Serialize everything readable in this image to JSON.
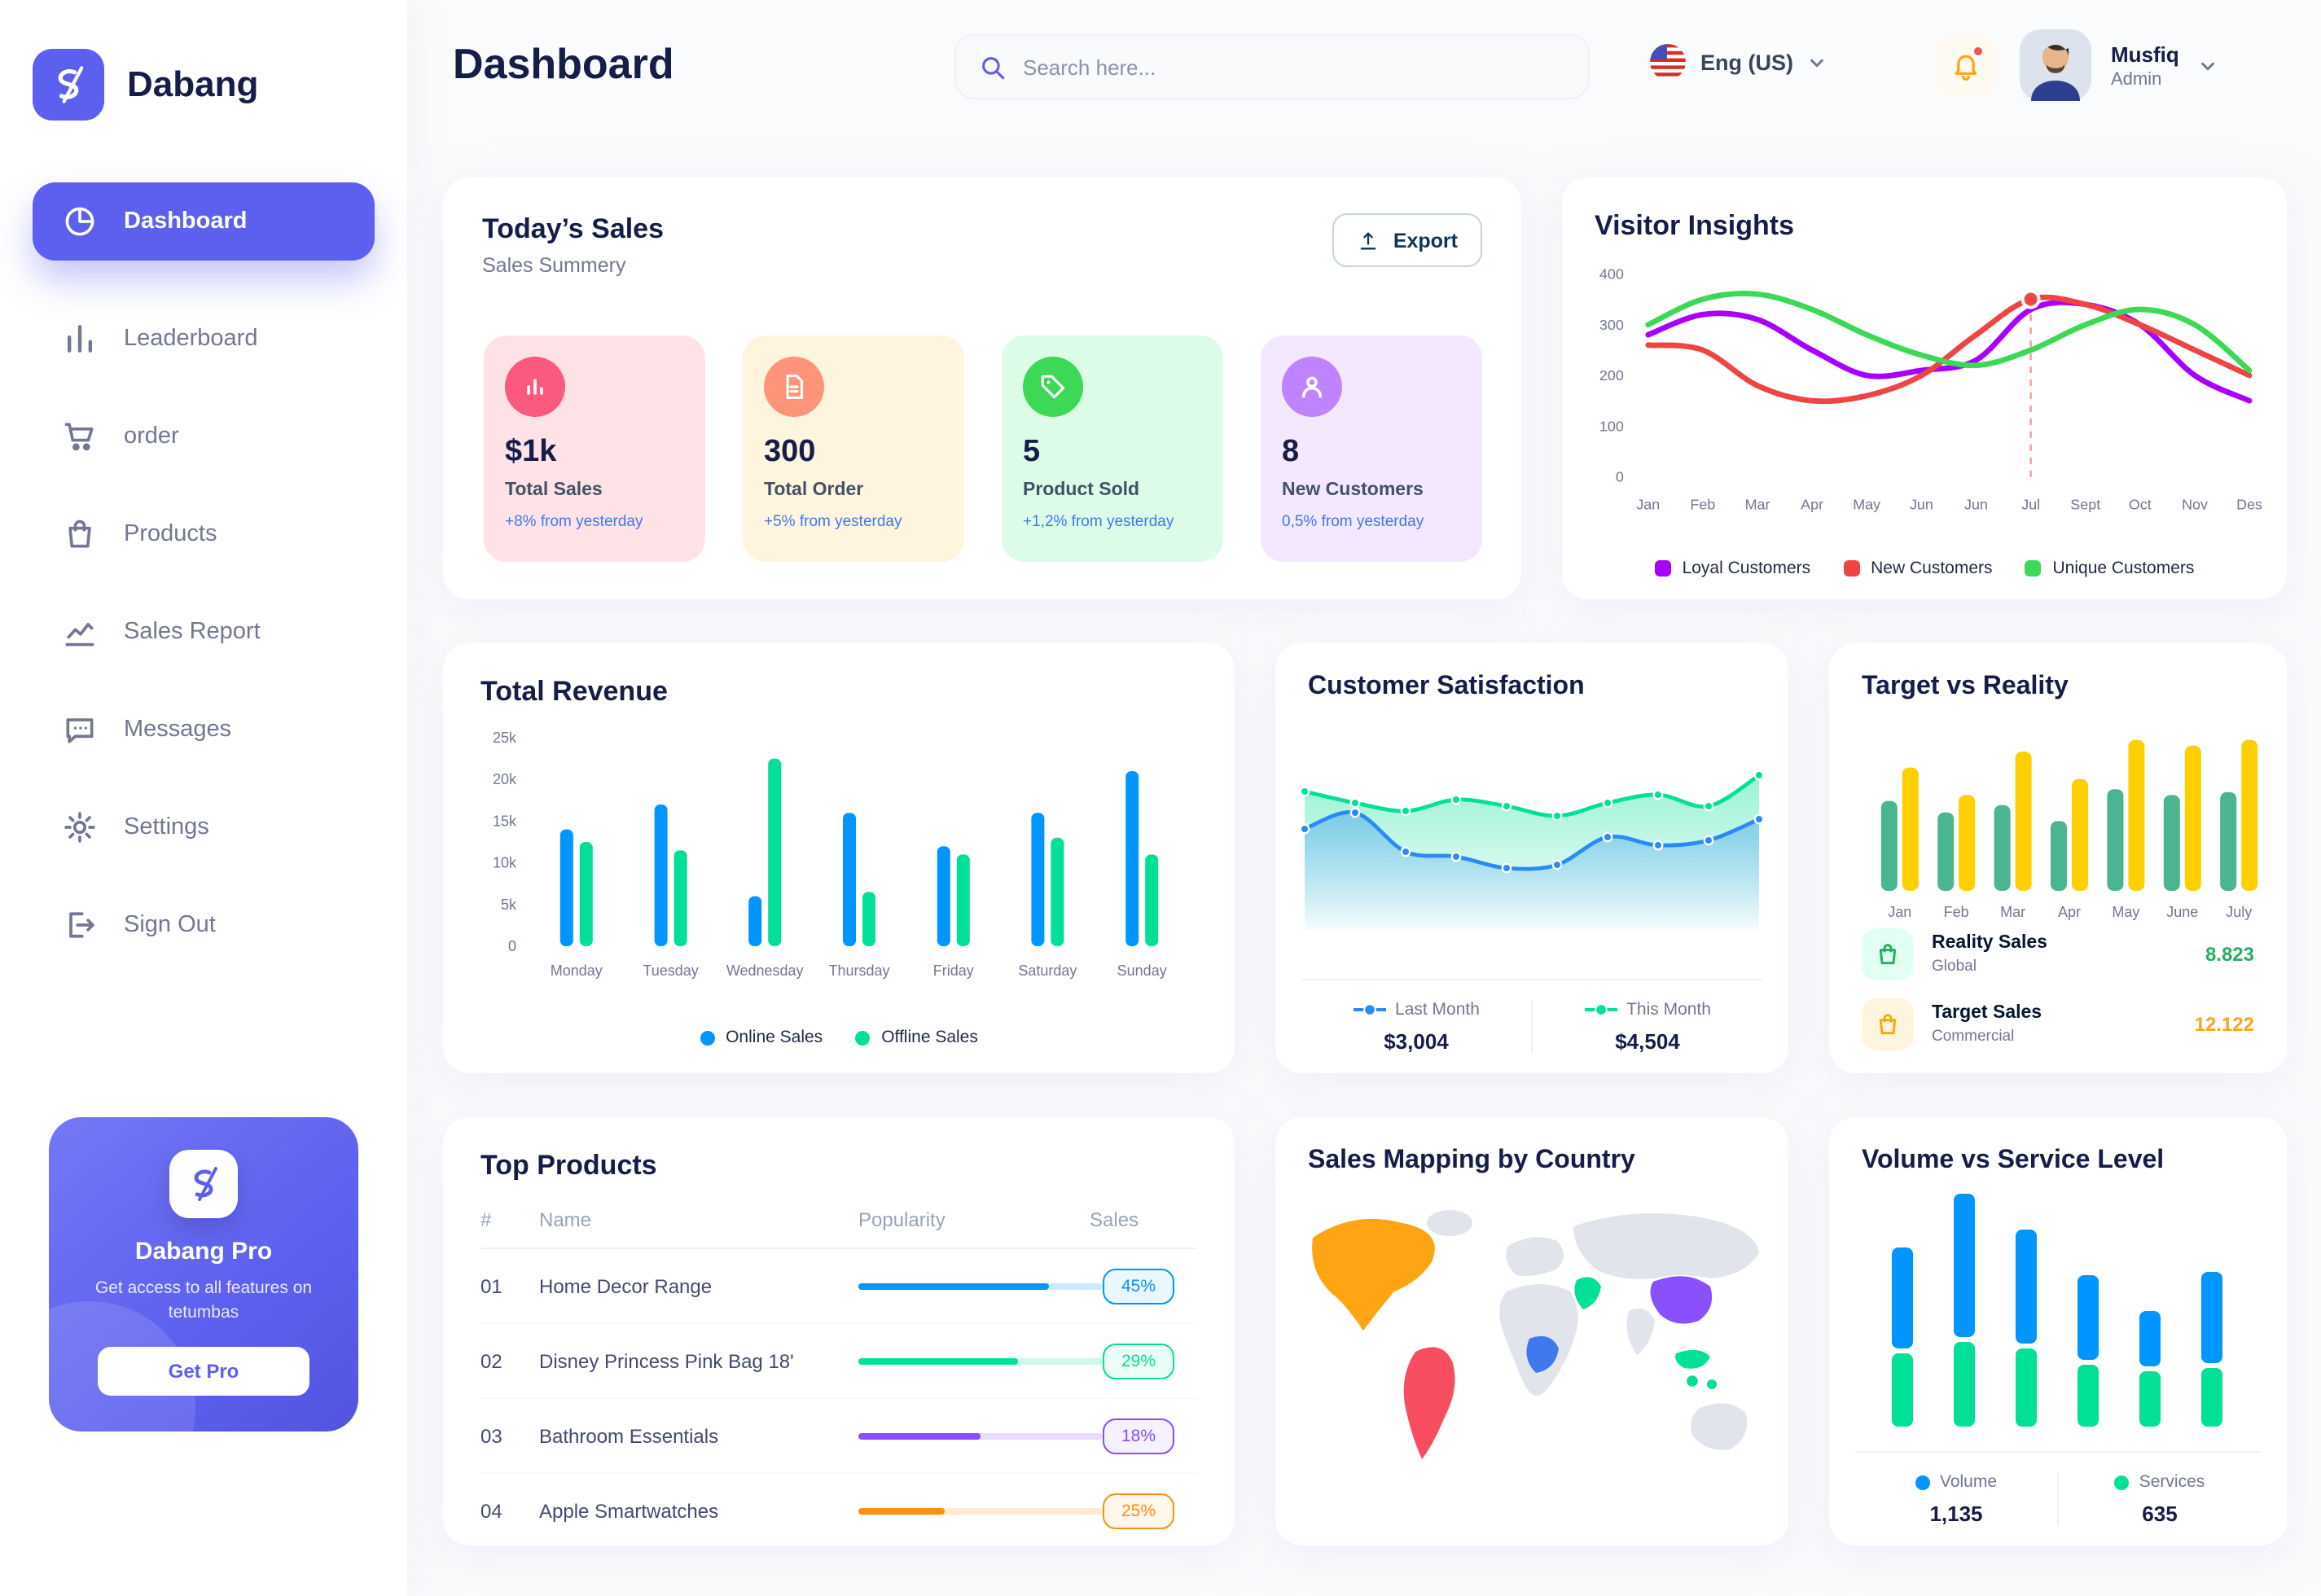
{
  "colors": {
    "primary": "#5D5FEF",
    "navy": "#151D48",
    "gray": "#737791",
    "blue": "#0095FF",
    "green": "#00E096",
    "violet": "#A700FF",
    "red": "#EF4444",
    "lime": "#3CD856",
    "yellow": "#FFCF00",
    "orange": "#FFA412"
  },
  "map_colors": {
    "land": "#E2E4EC",
    "north_america": "#FFA412",
    "south_america": "#F64E60",
    "africa_highlight": "#4079ED",
    "middle_east": "#00E096",
    "china": "#8950FC",
    "indonesia": "#00E096"
  },
  "app": {
    "name": "Dabang"
  },
  "sidebar": {
    "items": [
      {
        "label": "Dashboard",
        "icon": "dashboard",
        "active": true
      },
      {
        "label": "Leaderboard",
        "icon": "leaderboard",
        "active": false
      },
      {
        "label": "order",
        "icon": "cart",
        "active": false
      },
      {
        "label": "Products",
        "icon": "bag",
        "active": false
      },
      {
        "label": "Sales Report",
        "icon": "chart",
        "active": false
      },
      {
        "label": "Messages",
        "icon": "message",
        "active": false
      },
      {
        "label": "Settings",
        "icon": "gear",
        "active": false
      },
      {
        "label": "Sign Out",
        "icon": "signout",
        "active": false
      }
    ],
    "promo": {
      "title": "Dabang Pro",
      "text": "Get access to all features on tetumbas",
      "button": "Get Pro"
    }
  },
  "header": {
    "title": "Dashboard",
    "search_placeholder": "Search here...",
    "language": "Eng (US)",
    "user": {
      "name": "Musfiq",
      "role": "Admin"
    }
  },
  "todays_sales": {
    "title": "Today’s Sales",
    "subtitle": "Sales Summery",
    "export_label": "Export",
    "stats": [
      {
        "value": "$1k",
        "label": "Total Sales",
        "note": "+8% from yesterday",
        "bg": "#FFE2E5",
        "icon_bg": "#FA5A7D",
        "icon": "stat-chart"
      },
      {
        "value": "300",
        "label": "Total Order",
        "note": "+5% from yesterday",
        "bg": "#FFF4DE",
        "icon_bg": "#FF947A",
        "icon": "stat-file"
      },
      {
        "value": "5",
        "label": "Product Sold",
        "note": "+1,2% from yesterday",
        "bg": "#DCFCE7",
        "icon_bg": "#3CD856",
        "icon": "stat-tag"
      },
      {
        "value": "8",
        "label": "New Customers",
        "note": "0,5% from yesterday",
        "bg": "#F3E8FF",
        "icon_bg": "#BF83FF",
        "icon": "stat-user"
      }
    ]
  },
  "chart_data": [
    {
      "id": "visitor_insights",
      "type": "line",
      "title": "Visitor Insights",
      "x": [
        "Jan",
        "Feb",
        "Mar",
        "Apr",
        "May",
        "Jun",
        "Jun",
        "Jul",
        "Sept",
        "Oct",
        "Nov",
        "Des"
      ],
      "ylim": [
        0,
        400
      ],
      "yticks": [
        0,
        100,
        200,
        300,
        400
      ],
      "legend_position": "bottom",
      "series": [
        {
          "name": "Loyal Customers",
          "color": "#A700FF",
          "values": [
            280,
            320,
            310,
            250,
            200,
            210,
            230,
            330,
            340,
            300,
            200,
            150
          ]
        },
        {
          "name": "New Customers",
          "color": "#EF4444",
          "values": [
            260,
            250,
            180,
            150,
            160,
            200,
            280,
            350,
            340,
            300,
            250,
            200
          ]
        },
        {
          "name": "Unique Customers",
          "color": "#3CD856",
          "values": [
            300,
            350,
            360,
            330,
            280,
            240,
            220,
            250,
            300,
            330,
            300,
            210
          ]
        }
      ],
      "marker": {
        "series": "New Customers",
        "x_index": 7
      }
    },
    {
      "id": "total_revenue",
      "type": "bar",
      "title": "Total Revenue",
      "categories": [
        "Monday",
        "Tuesday",
        "Wednesday",
        "Thursday",
        "Friday",
        "Saturday",
        "Sunday"
      ],
      "ylim": [
        0,
        25000
      ],
      "yticks": [
        "0",
        "5k",
        "10k",
        "15k",
        "20k",
        "25k"
      ],
      "legend_position": "bottom",
      "series": [
        {
          "name": "Online Sales",
          "color": "#0095FF",
          "values": [
            14000,
            17000,
            6000,
            16000,
            12000,
            16000,
            21000
          ]
        },
        {
          "name": "Offline Sales",
          "color": "#00E096",
          "values": [
            12500,
            11500,
            22500,
            6500,
            11000,
            13000,
            11000
          ]
        }
      ]
    },
    {
      "id": "customer_satisfaction",
      "type": "area",
      "title": "Customer Satisfaction",
      "legend_position": "bottom",
      "series": [
        {
          "name": "Last Month",
          "color": "#2B8AF7",
          "total": "$3,004",
          "values": [
            62,
            72,
            48,
            45,
            38,
            40,
            57,
            52,
            55,
            68
          ]
        },
        {
          "name": "This Month",
          "color": "#00E096",
          "total": "$4,504",
          "values": [
            85,
            78,
            73,
            80,
            76,
            70,
            78,
            83,
            76,
            95
          ]
        }
      ]
    },
    {
      "id": "target_vs_reality",
      "type": "bar",
      "title": "Target vs Reality",
      "categories": [
        "Jan",
        "Feb",
        "Mar",
        "Apr",
        "May",
        "June",
        "July"
      ],
      "ylim": [
        0,
        11
      ],
      "series": [
        {
          "name": "Reality Sales",
          "color": "#4AB58E",
          "values": [
            6.2,
            5.4,
            5.9,
            4.8,
            7.0,
            6.6,
            6.8
          ]
        },
        {
          "name": "Target Sales",
          "color": "#FFCF00",
          "values": [
            8.5,
            6.6,
            9.6,
            7.7,
            10.4,
            10.0,
            10.4
          ]
        }
      ],
      "legend": [
        {
          "label": "Reality Sales",
          "sub": "Global",
          "value": "8.823",
          "value_color": "#27AE60",
          "icon_bg": "#E2FFF3",
          "icon_color": "#27AE60"
        },
        {
          "label": "Target Sales",
          "sub": "Commercial",
          "value": "12.122",
          "value_color": "#FFA412",
          "icon_bg": "#FFF4DE",
          "icon_color": "#FFA412"
        }
      ]
    },
    {
      "id": "volume_vs_service",
      "type": "stacked-bar",
      "title": "Volume vs Service Level",
      "legend_position": "bottom",
      "series": [
        {
          "name": "Volume",
          "color": "#0095FF",
          "total": "1,135",
          "values": [
            62,
            88,
            70,
            52,
            34,
            56
          ]
        },
        {
          "name": "Services",
          "color": "#00E096",
          "total": "635",
          "values": [
            45,
            52,
            48,
            38,
            34,
            36
          ]
        }
      ]
    }
  ],
  "top_products": {
    "title": "Top Products",
    "columns": [
      "#",
      "Name",
      "Popularity",
      "Sales"
    ],
    "rows": [
      {
        "num": "01",
        "name": "Home Decor Range",
        "popularity": 78,
        "sales": "45%",
        "color": "#0095FF"
      },
      {
        "num": "02",
        "name": "Disney Princess Pink Bag 18'",
        "popularity": 65,
        "sales": "29%",
        "color": "#00E096"
      },
      {
        "num": "03",
        "name": "Bathroom Essentials",
        "popularity": 50,
        "sales": "18%",
        "color": "#884DFF"
      },
      {
        "num": "04",
        "name": "Apple Smartwatches",
        "popularity": 35,
        "sales": "25%",
        "color": "#FF8F0D"
      }
    ]
  },
  "sales_mapping": {
    "title": "Sales Mapping by Country"
  }
}
